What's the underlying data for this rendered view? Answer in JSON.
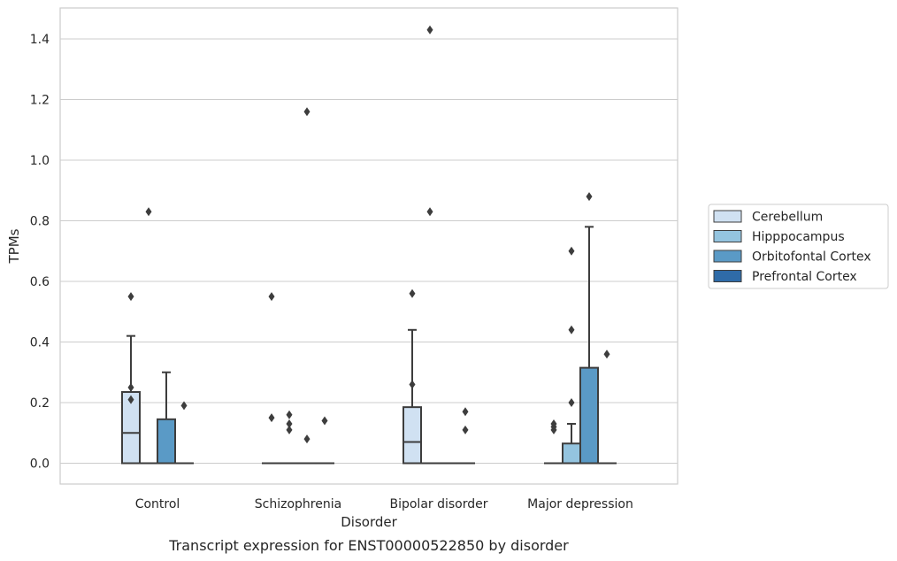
{
  "chart_data": {
    "type": "box",
    "xlabel": "Disorder",
    "ylabel": "TPMs",
    "caption": "Transcript expression for ENST00000522850 by disorder",
    "ylim": [
      -0.07,
      1.5
    ],
    "yticks": [
      "0.0",
      "0.2",
      "0.4",
      "0.6",
      "0.8",
      "1.0",
      "1.2",
      "1.4"
    ],
    "grid": "horizontal",
    "legend_position": "right",
    "categories": [
      "Control",
      "Schizophrenia",
      "Bipolar disorder",
      "Major depression"
    ],
    "series": [
      {
        "name": "Cerebellum",
        "color": "#d0e1f2",
        "boxes": [
          {
            "category": "Control",
            "min": 0,
            "q1": 0,
            "median": 0.1,
            "q3": 0.235,
            "max": 0.42,
            "outliers": [
              0.55,
              0.25,
              0.21
            ]
          },
          {
            "category": "Schizophrenia",
            "min": 0,
            "q1": 0,
            "median": 0,
            "q3": 0,
            "max": 0,
            "outliers": [
              0.55,
              0.15
            ]
          },
          {
            "category": "Bipolar disorder",
            "min": 0,
            "q1": 0,
            "median": 0.07,
            "q3": 0.185,
            "max": 0.44,
            "outliers": [
              0.56,
              0.26
            ]
          },
          {
            "category": "Major depression",
            "min": 0,
            "q1": 0,
            "median": 0,
            "q3": 0,
            "max": 0,
            "outliers": [
              0.13,
              0.12,
              0.11
            ]
          }
        ]
      },
      {
        "name": "Hipppocampus",
        "color": "#94c4df",
        "boxes": [
          {
            "category": "Control",
            "min": 0,
            "q1": 0,
            "median": 0,
            "q3": 0,
            "max": 0,
            "outliers": [
              0.83
            ]
          },
          {
            "category": "Schizophrenia",
            "min": 0,
            "q1": 0,
            "median": 0,
            "q3": 0,
            "max": 0,
            "outliers": [
              0.16,
              0.13,
              0.11
            ]
          },
          {
            "category": "Bipolar disorder",
            "min": 0,
            "q1": 0,
            "median": 0,
            "q3": 0,
            "max": 0,
            "outliers": [
              1.43,
              0.83
            ]
          },
          {
            "category": "Major depression",
            "min": 0,
            "q1": 0,
            "median": 0,
            "q3": 0.065,
            "max": 0.13,
            "outliers": [
              0.7,
              0.44,
              0.2
            ]
          }
        ]
      },
      {
        "name": "Orbitofontal Cortex",
        "color": "#5a9ac6",
        "boxes": [
          {
            "category": "Control",
            "min": 0,
            "q1": 0,
            "median": 0,
            "q3": 0.145,
            "max": 0.3,
            "outliers": []
          },
          {
            "category": "Schizophrenia",
            "min": 0,
            "q1": 0,
            "median": 0,
            "q3": 0,
            "max": 0,
            "outliers": [
              1.16,
              0.08
            ]
          },
          {
            "category": "Bipolar disorder",
            "min": 0,
            "q1": 0,
            "median": 0,
            "q3": 0,
            "max": 0,
            "outliers": []
          },
          {
            "category": "Major depression",
            "min": 0,
            "q1": 0,
            "median": 0,
            "q3": 0.315,
            "max": 0.78,
            "outliers": [
              0.88
            ]
          }
        ]
      },
      {
        "name": "Prefrontal Cortex",
        "color": "#2f6ba8",
        "boxes": [
          {
            "category": "Control",
            "min": 0,
            "q1": 0,
            "median": 0,
            "q3": 0,
            "max": 0,
            "outliers": [
              0.19
            ]
          },
          {
            "category": "Schizophrenia",
            "min": 0,
            "q1": 0,
            "median": 0,
            "q3": 0,
            "max": 0,
            "outliers": [
              0.14
            ]
          },
          {
            "category": "Bipolar disorder",
            "min": 0,
            "q1": 0,
            "median": 0,
            "q3": 0,
            "max": 0,
            "outliers": [
              0.17,
              0.11
            ]
          },
          {
            "category": "Major depression",
            "min": 0,
            "q1": 0,
            "median": 0,
            "q3": 0,
            "max": 0,
            "outliers": [
              0.36
            ]
          }
        ]
      }
    ]
  },
  "colors": {
    "grid": "#cccccc",
    "frame": "#cccccc",
    "line": "#3d3d3d"
  }
}
